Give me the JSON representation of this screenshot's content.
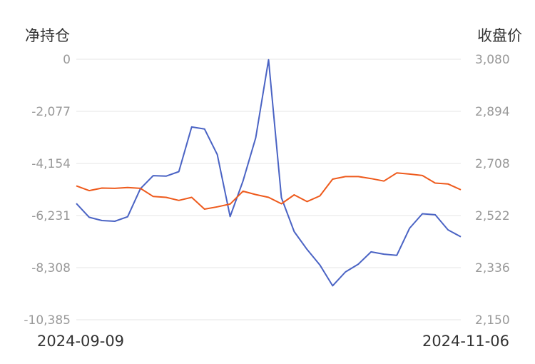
{
  "chart_data": {
    "type": "line",
    "left_axis": {
      "title": "净持仓",
      "ticks": [
        "0",
        "-2,077",
        "-4,154",
        "-6,231",
        "-8,308",
        "-10,385"
      ],
      "range": [
        -10385,
        0
      ]
    },
    "right_axis": {
      "title": "收盘价",
      "ticks": [
        "3,080",
        "2,894",
        "2,708",
        "2,522",
        "2,336",
        "2,150"
      ],
      "range": [
        2150,
        3080
      ]
    },
    "x_start_label": "2024-09-09",
    "x_end_label": "2024-11-06",
    "grid": true,
    "series": [
      {
        "axis": "left",
        "color": "#4a63c4",
        "values": [
          -5750,
          -6300,
          -6430,
          -6460,
          -6280,
          -5160,
          -4640,
          -4660,
          -4480,
          -2700,
          -2780,
          -3800,
          -6270,
          -4860,
          -3130,
          -20,
          -5520,
          -6870,
          -7580,
          -8200,
          -9030,
          -8480,
          -8170,
          -7680,
          -7770,
          -7820,
          -6740,
          -6160,
          -6200,
          -6800,
          -7080
        ]
      },
      {
        "axis": "right",
        "color": "#ee5a1c",
        "values": [
          2628,
          2611,
          2620,
          2619,
          2622,
          2619,
          2590,
          2587,
          2576,
          2587,
          2545,
          2553,
          2563,
          2609,
          2597,
          2587,
          2564,
          2596,
          2572,
          2592,
          2652,
          2661,
          2661,
          2654,
          2645,
          2674,
          2670,
          2665,
          2638,
          2635,
          2614
        ]
      }
    ]
  }
}
